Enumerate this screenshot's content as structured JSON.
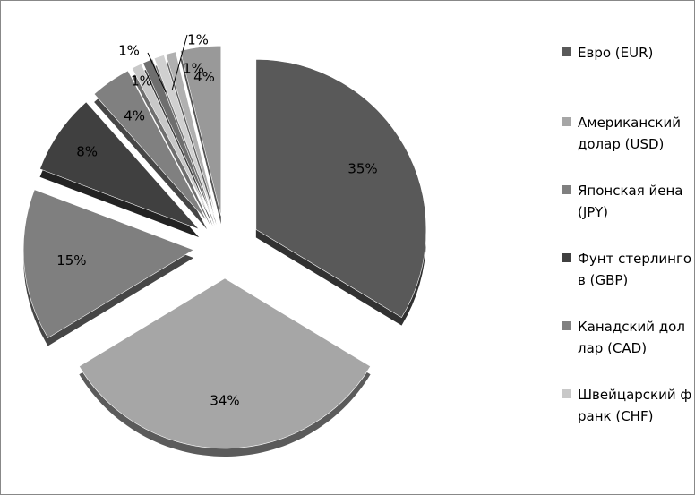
{
  "chart_data": {
    "type": "pie",
    "exploded": true,
    "three_d": true,
    "slices": [
      {
        "name": "Евро (EUR)",
        "value": 35,
        "label": "35%",
        "color": "#595959"
      },
      {
        "name": "Американский долар (USD)",
        "value": 34,
        "label": "34%",
        "color": "#a6a6a6"
      },
      {
        "name": "Японская йена (JPY)",
        "value": 15,
        "label": "15%",
        "color": "#7f7f7f"
      },
      {
        "name": "Фунт стерлингов (GBP)",
        "value": 8,
        "label": "8%",
        "color": "#404040"
      },
      {
        "name": "Канадский доллар (CAD)",
        "value": 4,
        "label": "4%",
        "color": "#808080"
      },
      {
        "name": "Швейцарский франк (CHF)",
        "value": 1,
        "label": "1%",
        "color": "#c8c8c8"
      },
      {
        "name": "",
        "value": 1,
        "label": "1%",
        "color": "#6e6e6e"
      },
      {
        "name": "",
        "value": 1,
        "label": "1%",
        "color": "#d0d0d0"
      },
      {
        "name": "",
        "value": 1,
        "label": "1%",
        "color": "#b0b0b0"
      },
      {
        "name": "",
        "value": 4,
        "label": "4%",
        "color": "#999999"
      }
    ],
    "legend": {
      "placement": "right",
      "entries": [
        {
          "text": "Евро (EUR)",
          "color": "#595959"
        },
        {
          "text": "Американский долар (USD)",
          "color": "#a6a6a6"
        },
        {
          "text": "Японская йена (JPY)",
          "color": "#7f7f7f"
        },
        {
          "text": "Фунт стерлингов (GBP)",
          "color": "#404040"
        },
        {
          "text": "Канадский доллар (CAD)",
          "color": "#808080"
        },
        {
          "text": "Швейцарский франк (CHF)",
          "color": "#c8c8c8"
        }
      ]
    }
  }
}
